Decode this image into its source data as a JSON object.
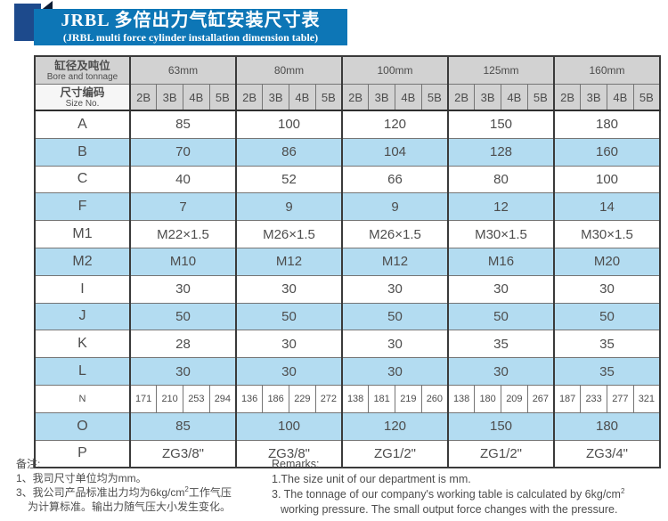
{
  "colors": {
    "banner_blue": "#0d76b6",
    "navy_square": "#1d4a8c",
    "fold_dark": "#0c1b33",
    "row_band_blue": "#b3dcf1",
    "header_gray": "#d2d2d2",
    "border_gray": "#757575",
    "text_gray": "#4d4d4d"
  },
  "banner": {
    "title": "JRBL 多倍出力气缸安装尺寸表",
    "subtitle": "(JRBL multi force cylinder installation dimension table)"
  },
  "table": {
    "corner_zh": "缸径及吨位",
    "corner_en": "Bore and tonnage",
    "sizeno_zh": "尺寸编码",
    "sizeno_en": "Size No.",
    "groups": [
      "63mm",
      "80mm",
      "100mm",
      "125mm",
      "160mm"
    ],
    "sub_headers": [
      "2B",
      "3B",
      "4B",
      "5B"
    ],
    "rows": [
      {
        "label": "A",
        "values": [
          "85",
          "100",
          "120",
          "150",
          "180"
        ]
      },
      {
        "label": "B",
        "values": [
          "70",
          "86",
          "104",
          "128",
          "160"
        ]
      },
      {
        "label": "C",
        "values": [
          "40",
          "52",
          "66",
          "80",
          "100"
        ]
      },
      {
        "label": "F",
        "values": [
          "7",
          "9",
          "9",
          "12",
          "14"
        ]
      },
      {
        "label": "M1",
        "values": [
          "M22×1.5",
          "M26×1.5",
          "M26×1.5",
          "M30×1.5",
          "M30×1.5"
        ]
      },
      {
        "label": "M2",
        "values": [
          "M10",
          "M12",
          "M12",
          "M16",
          "M20"
        ]
      },
      {
        "label": "I",
        "values": [
          "30",
          "30",
          "30",
          "30",
          "30"
        ]
      },
      {
        "label": "J",
        "values": [
          "50",
          "50",
          "50",
          "50",
          "50"
        ]
      },
      {
        "label": "K",
        "values": [
          "28",
          "30",
          "30",
          "35",
          "35"
        ]
      },
      {
        "label": "L",
        "values": [
          "30",
          "30",
          "30",
          "30",
          "35"
        ]
      },
      {
        "label": "N",
        "values": [
          "171",
          "210",
          "253",
          "294",
          "136",
          "186",
          "229",
          "272",
          "138",
          "181",
          "219",
          "260",
          "138",
          "180",
          "209",
          "267",
          "187",
          "233",
          "277",
          "321"
        ]
      },
      {
        "label": "O",
        "values": [
          "85",
          "100",
          "120",
          "150",
          "180"
        ]
      },
      {
        "label": "P",
        "values": [
          "ZG3/8\"",
          "ZG3/8\"",
          "ZG1/2\"",
          "ZG1/2\"",
          "ZG3/4\""
        ]
      }
    ]
  },
  "notes_zh": {
    "heading": "备注:",
    "line1": "1、我司尺寸单位均为mm。",
    "line3a": "3、我公司产品标准出力均为6kg/cm",
    "line3_sup": "2",
    "line3b": "工作气压",
    "line3c": "为计算标准。输出力随气压大小发生变化。"
  },
  "notes_en": {
    "heading": "Remarks:",
    "line1": "1.The size unit of our department is mm.",
    "line3a": "3. The tonnage of our company's working table is calculated by 6kg/cm",
    "line3_sup": "2",
    "line3b": "working pressure. The small output force changes with the pressure."
  }
}
